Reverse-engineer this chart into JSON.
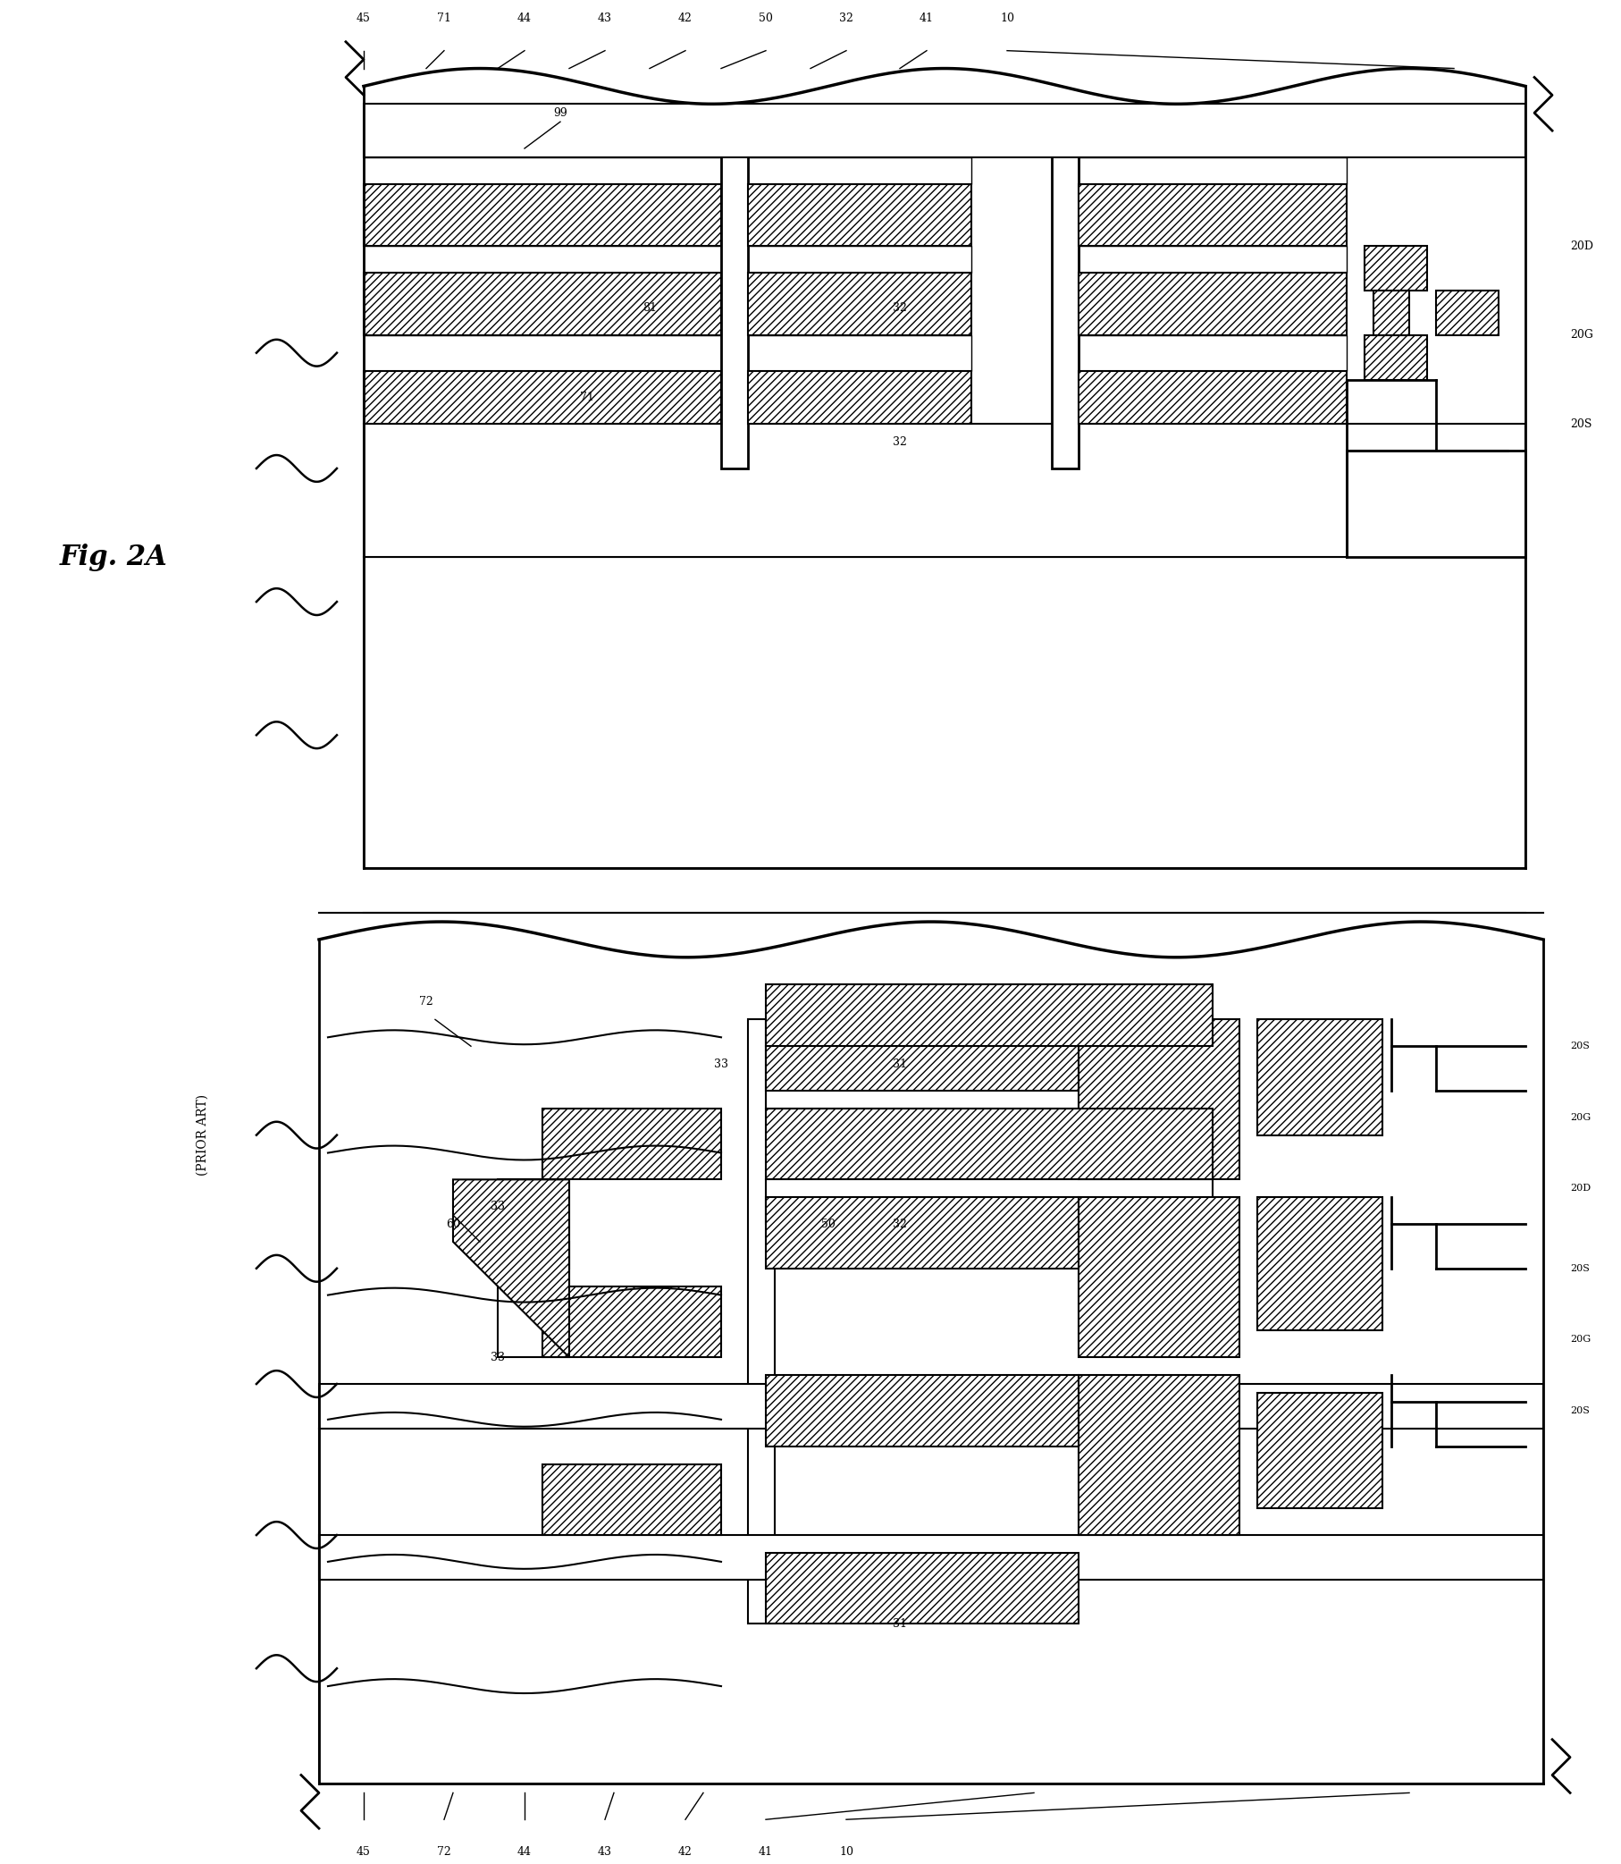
{
  "title": "Fig. 2A",
  "prior_art_label": "(PRIOR ART)",
  "background_color": "#ffffff",
  "line_color": "#000000",
  "hatch_color": "#000000",
  "fig_width": 18.14,
  "fig_height": 20.85,
  "labels_top": [
    "45",
    "71",
    "44",
    "43",
    "42",
    "50",
    "32",
    "41",
    "10"
  ],
  "labels_bottom": [
    "45",
    "72",
    "44",
    "43",
    "42",
    "41",
    "10"
  ],
  "labels_right_top": [
    "20D",
    "20G",
    "20S"
  ],
  "labels_right_bottom": [
    "20S",
    "20G",
    "20D",
    "20S",
    "20G",
    "20S"
  ],
  "label_99": "99",
  "label_81": "81",
  "label_71": "71",
  "label_72": "72",
  "label_60": "60",
  "label_50": "50",
  "label_33": "33",
  "label_31": "31",
  "label_32": "32",
  "label_figA": "Fig. 2A"
}
